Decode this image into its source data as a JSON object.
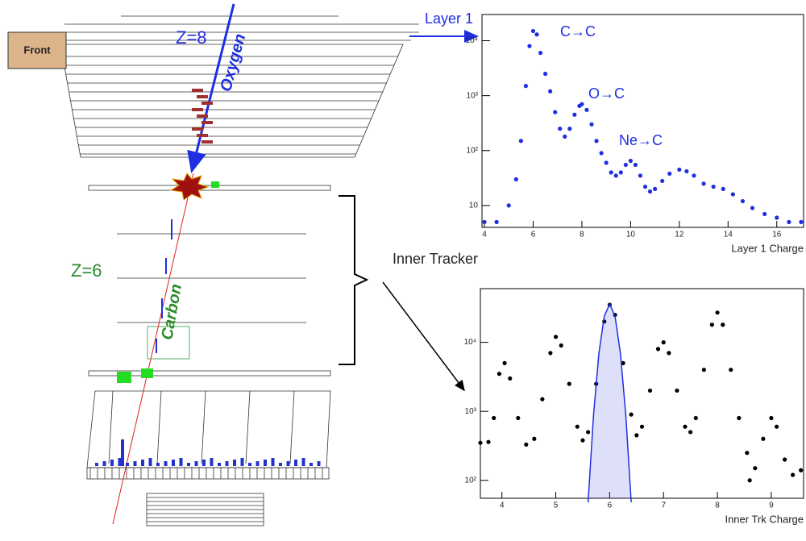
{
  "diagram": {
    "front": "Front",
    "z8": "Z=8",
    "oxygen": "Oxygen",
    "z6": "Z=6",
    "carbon": "Carbon",
    "layer1": "Layer 1",
    "inner_tracker": "Inner Tracker"
  },
  "chart_data": [
    {
      "type": "scatter",
      "xlabel": "Layer 1 Charge",
      "log_y": true,
      "annotations": [
        "C→C",
        "O→C",
        "Ne→C"
      ],
      "xlim": [
        3.9,
        17.1
      ],
      "ylim": [
        4,
        30000
      ],
      "xticks": [
        4,
        6,
        8,
        10,
        12,
        14,
        16
      ],
      "yticks": [
        {
          "value": 10,
          "label": "10"
        },
        {
          "value": 100,
          "label": "10²"
        },
        {
          "value": 1000,
          "label": "10³"
        },
        {
          "value": 10000,
          "label": "10⁴"
        }
      ],
      "series": [
        {
          "color": "#1f2fe0",
          "x": [
            4.0,
            4.5,
            5.0,
            5.3,
            5.5,
            5.7,
            5.85,
            6.0,
            6.15,
            6.3,
            6.5,
            6.7,
            6.9,
            7.1,
            7.3,
            7.5,
            7.7,
            7.9,
            8.0,
            8.2,
            8.4,
            8.6,
            8.8,
            9.0,
            9.2,
            9.4,
            9.6,
            9.8,
            10.0,
            10.2,
            10.4,
            10.6,
            10.8,
            11.0,
            11.3,
            11.6,
            12.0,
            12.3,
            12.6,
            13.0,
            13.4,
            13.8,
            14.2,
            14.6,
            15.0,
            15.5,
            16.0,
            16.5,
            17.0
          ],
          "values": [
            5,
            5,
            10,
            30,
            150,
            1500,
            8000,
            15000,
            13000,
            6000,
            2500,
            1200,
            500,
            250,
            180,
            250,
            450,
            650,
            700,
            550,
            300,
            150,
            90,
            60,
            40,
            35,
            40,
            55,
            65,
            55,
            35,
            22,
            18,
            20,
            28,
            38,
            45,
            42,
            35,
            25,
            22,
            20,
            16,
            12,
            9,
            7,
            6,
            5,
            5
          ]
        }
      ]
    },
    {
      "type": "scatter",
      "xlabel": "Inner Trk Charge",
      "log_y": true,
      "xlim": [
        3.6,
        9.6
      ],
      "ylim": [
        55,
        60000
      ],
      "xticks": [
        4,
        5,
        6,
        7,
        8,
        9
      ],
      "yticks": [
        {
          "value": 100,
          "label": "10²"
        },
        {
          "value": 1000,
          "label": "10³"
        },
        {
          "value": 10000,
          "label": "10⁴"
        }
      ],
      "series": [
        {
          "color": "#000000",
          "x": [
            3.6,
            3.75,
            3.85,
            3.95,
            4.05,
            4.15,
            4.3,
            4.45,
            4.6,
            4.75,
            4.9,
            5.0,
            5.1,
            5.25,
            5.4,
            5.5,
            5.6,
            5.75,
            5.9,
            6.0,
            6.1,
            6.25,
            6.4,
            6.5,
            6.6,
            6.75,
            6.9,
            7.0,
            7.1,
            7.25,
            7.4,
            7.5,
            7.6,
            7.75,
            7.9,
            8.0,
            8.1,
            8.25,
            8.4,
            8.55,
            8.6,
            8.7,
            8.85,
            9.0,
            9.1,
            9.25,
            9.4,
            9.55
          ],
          "values": [
            350,
            360,
            800,
            3500,
            5000,
            3000,
            800,
            330,
            400,
            1500,
            7000,
            12000,
            9000,
            2500,
            600,
            380,
            500,
            2500,
            20000,
            35000,
            25000,
            5000,
            900,
            450,
            600,
            2000,
            8000,
            10000,
            7000,
            2000,
            600,
            500,
            800,
            4000,
            18000,
            27000,
            18000,
            4000,
            800,
            250,
            100,
            150,
            400,
            800,
            600,
            200,
            120,
            140
          ]
        },
        {
          "type": "line",
          "color": "#1f2fe0",
          "x": [
            5.6,
            5.7,
            5.8,
            5.9,
            6.0,
            6.1,
            6.2,
            6.3,
            6.4
          ],
          "values": [
            48,
            873,
            6900,
            23800,
            36000,
            23800,
            6900,
            873,
            48
          ]
        }
      ]
    }
  ]
}
